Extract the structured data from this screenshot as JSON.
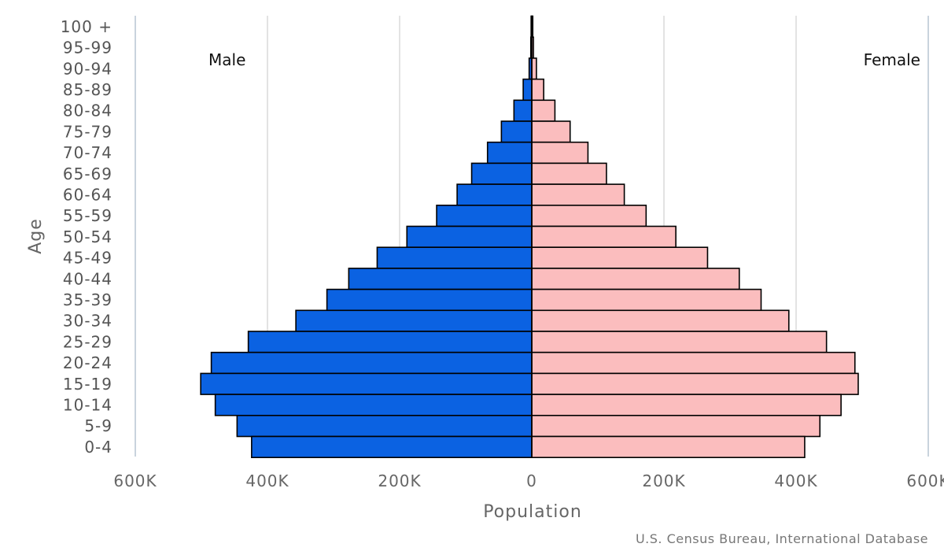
{
  "chart_data": {
    "type": "bar",
    "orientation": "horizontal",
    "layout": "population-pyramid",
    "categories": [
      "100 +",
      "95-99",
      "90-94",
      "85-89",
      "80-84",
      "75-79",
      "70-74",
      "65-69",
      "60-64",
      "55-59",
      "50-54",
      "45-49",
      "40-44",
      "35-39",
      "30-34",
      "25-29",
      "20-24",
      "15-19",
      "10-14",
      "5-9",
      "0-4"
    ],
    "series": [
      {
        "name": "Male",
        "side": "left",
        "color": "#0b62e2",
        "values": [
          1000,
          1500,
          4000,
          13000,
          27000,
          46000,
          67000,
          91000,
          113000,
          144000,
          189000,
          234000,
          277000,
          310000,
          357000,
          429000,
          485000,
          501000,
          479000,
          446000,
          424000
        ]
      },
      {
        "name": "Female",
        "side": "right",
        "color": "#fbbdbe",
        "values": [
          1500,
          2500,
          7000,
          18000,
          35000,
          58000,
          85000,
          113000,
          140000,
          173000,
          218000,
          266000,
          314000,
          347000,
          389000,
          446000,
          489000,
          494000,
          468000,
          436000,
          413000
        ]
      }
    ],
    "xlabel": "Population",
    "ylabel": "Age",
    "xlim": [
      -600000,
      600000
    ],
    "xticks": [
      {
        "value": -600000,
        "label": "600K"
      },
      {
        "value": -400000,
        "label": "400K"
      },
      {
        "value": -200000,
        "label": "200K"
      },
      {
        "value": 0,
        "label": "0"
      },
      {
        "value": 200000,
        "label": "200K"
      },
      {
        "value": 400000,
        "label": "400K"
      },
      {
        "value": 600000,
        "label": "600K"
      }
    ],
    "grid": true,
    "side_labels": {
      "left": "Male",
      "right": "Female"
    },
    "credit": "U.S. Census Bureau, International Database"
  }
}
